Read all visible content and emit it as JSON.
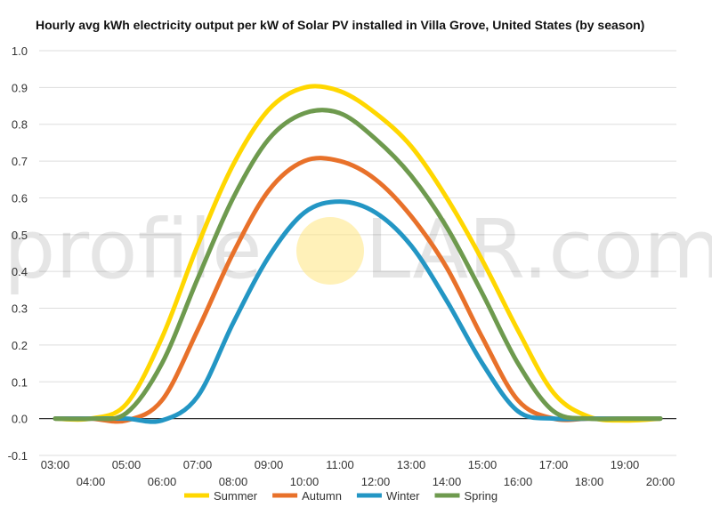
{
  "chart_data": {
    "type": "line",
    "title": "Hourly avg kWh electricity output per kW of Solar PV installed in Villa Grove, United States (by season)",
    "xlabel": "",
    "ylabel": "",
    "ylim": [
      -0.1,
      1.0
    ],
    "yticks": [
      "1.0",
      "0.9",
      "0.8",
      "0.7",
      "0.6",
      "0.5",
      "0.4",
      "0.3",
      "0.2",
      "0.1",
      "0.0",
      "-0.1"
    ],
    "y_tick_values": [
      1.0,
      0.9,
      0.8,
      0.7,
      0.6,
      0.5,
      0.4,
      0.3,
      0.2,
      0.1,
      0.0,
      -0.1
    ],
    "x": [
      "03:00",
      "04:00",
      "05:00",
      "06:00",
      "07:00",
      "08:00",
      "09:00",
      "10:00",
      "11:00",
      "12:00",
      "13:00",
      "14:00",
      "15:00",
      "16:00",
      "17:00",
      "18:00",
      "19:00",
      "20:00"
    ],
    "grid": true,
    "legend_position": "bottom",
    "series": [
      {
        "name": "Summer",
        "color": "#FFD700",
        "values": [
          0.0,
          0.0,
          0.04,
          0.22,
          0.47,
          0.69,
          0.84,
          0.9,
          0.89,
          0.83,
          0.74,
          0.6,
          0.43,
          0.24,
          0.07,
          0.005,
          -0.005,
          0.0
        ]
      },
      {
        "name": "Autumn",
        "color": "#E8712A",
        "values": [
          0.0,
          0.0,
          -0.005,
          0.05,
          0.24,
          0.45,
          0.62,
          0.7,
          0.7,
          0.65,
          0.55,
          0.41,
          0.22,
          0.05,
          0.0,
          0.0,
          0.0,
          0.0
        ]
      },
      {
        "name": "Winter",
        "color": "#2396C4",
        "values": [
          0.0,
          0.0,
          0.0,
          -0.005,
          0.06,
          0.26,
          0.44,
          0.56,
          0.59,
          0.56,
          0.47,
          0.32,
          0.15,
          0.02,
          0.0,
          0.0,
          0.0,
          0.0
        ]
      },
      {
        "name": "Spring",
        "color": "#6E9A4E",
        "values": [
          0.0,
          0.0,
          0.015,
          0.15,
          0.38,
          0.6,
          0.76,
          0.83,
          0.83,
          0.76,
          0.66,
          0.52,
          0.34,
          0.15,
          0.02,
          0.0,
          0.0,
          0.0
        ]
      }
    ]
  },
  "watermark": {
    "left": "profile",
    "right": "LAR.com",
    "sun_color": "#FFE680"
  }
}
